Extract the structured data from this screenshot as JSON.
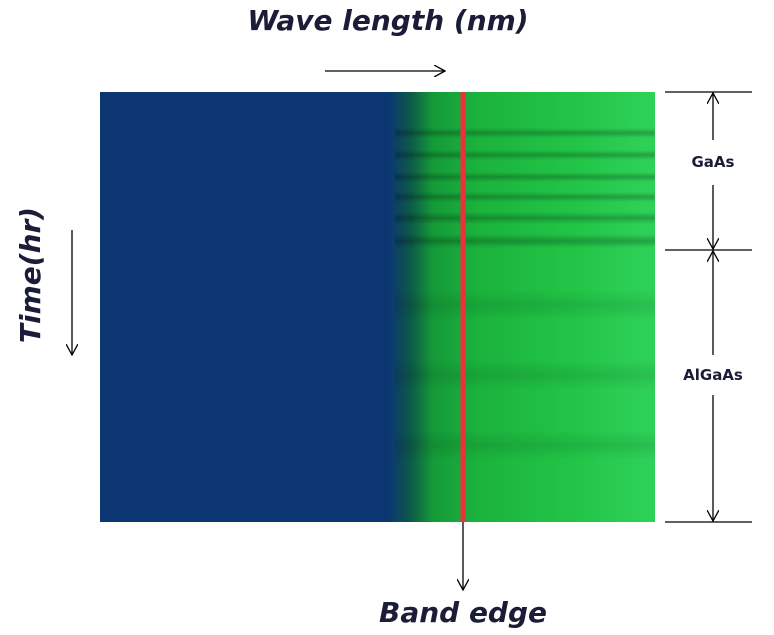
{
  "title": "Wave length (nm)",
  "y_label": "Time(hr)",
  "band_label": "Band edge",
  "layers": [
    {
      "label": "GaAs"
    },
    {
      "label": "AlGaAs"
    }
  ]
}
